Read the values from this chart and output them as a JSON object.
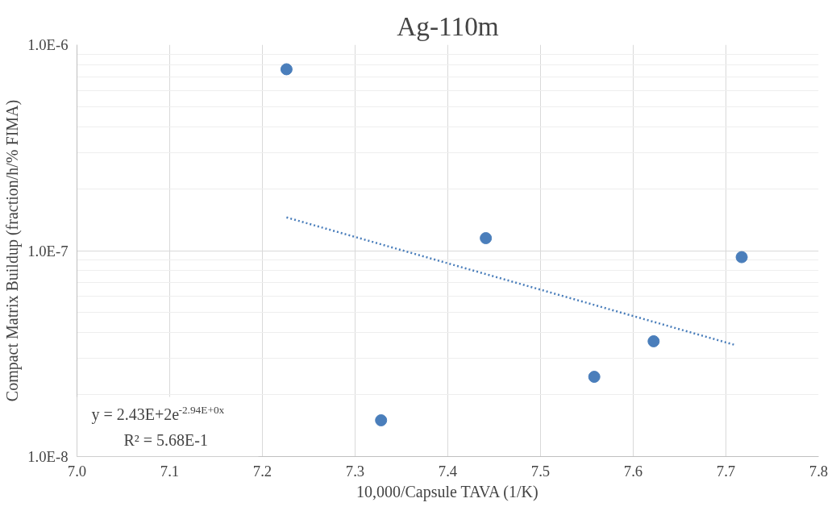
{
  "chart_data": {
    "type": "scatter",
    "title": "Ag-110m",
    "xlabel": "10,000/Capsule TAVA (1/K)",
    "ylabel": "Compact Matrix Buildup (fraction/h/% FIMA)",
    "x": [
      7.226,
      7.328,
      7.441,
      7.558,
      7.622,
      7.717
    ],
    "series": [
      {
        "color": "#4a7ebb",
        "marker": "circle",
        "values": [
          7.6e-07,
          1.5e-08,
          1.15e-07,
          2.44e-08,
          3.63e-08,
          9.3e-08
        ]
      },
      {
        "type": "line",
        "color": "#4a7ebb",
        "line_style": "dotted",
        "marker": "none",
        "x": [
          7.226,
          7.71
        ],
        "values": [
          1.45e-07,
          3.48e-08
        ]
      }
    ],
    "log": "y",
    "grid": true,
    "xlim": [
      7.0,
      7.8
    ],
    "xticks": [
      {
        "value": 7.0,
        "label": "7.0"
      },
      7.1,
      7.2,
      7.3,
      7.4,
      7.5,
      7.6,
      7.7,
      7.8
    ],
    "ylim": [
      1e-08,
      1e-06
    ],
    "yticks": [
      {
        "value": 1e-08,
        "label": "1.0E-8"
      },
      {
        "value": 1e-07,
        "label": "1.0E-7"
      },
      {
        "value": 1e-06,
        "label": "1.0E-6"
      }
    ],
    "annotations": [
      "y = 2.43E+2e$^{-2.94E+0x}$",
      "R² = 5.68E-1"
    ]
  }
}
